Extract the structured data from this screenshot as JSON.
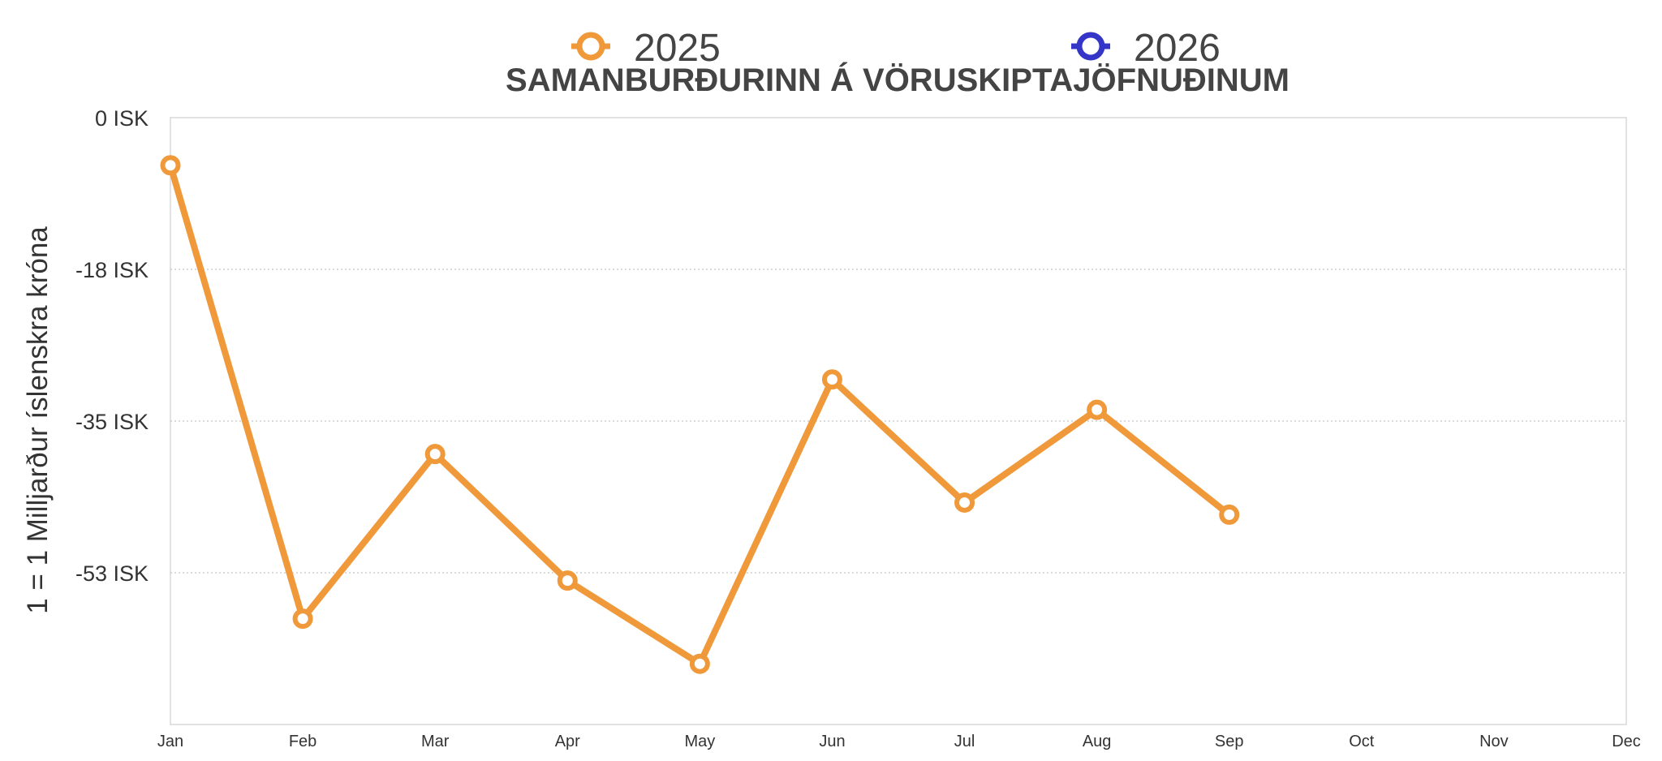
{
  "chart_data": {
    "type": "line",
    "title": "SAMANBURÐURINN Á VÖRUSKIPTAJÖFNUÐINUM",
    "xlabel": "",
    "ylabel": "1 = 1 Milljarður íslenskra króna",
    "categories": [
      "Jan",
      "Feb",
      "Mar",
      "Apr",
      "May",
      "Jun",
      "Jul",
      "Aug",
      "Sep",
      "Oct",
      "Nov",
      "Dec"
    ],
    "ylim": [
      -70,
      0
    ],
    "yticks": [
      {
        "value": 0,
        "label": "0 ISK"
      },
      {
        "value": -17.5,
        "label": "-18 ISK"
      },
      {
        "value": -35,
        "label": "-35 ISK"
      },
      {
        "value": -52.5,
        "label": "-53 ISK"
      }
    ],
    "grid": true,
    "legend_position": "top",
    "series": [
      {
        "name": "2025",
        "color": "#F0993A",
        "values": [
          -5.5,
          -57.8,
          -38.8,
          -53.4,
          -63.0,
          -30.2,
          -44.4,
          -33.7,
          -45.8,
          null,
          null,
          null
        ]
      },
      {
        "name": "2026",
        "color": "#3535C8",
        "values": [
          null,
          null,
          null,
          null,
          null,
          null,
          null,
          null,
          null,
          null,
          null,
          null
        ]
      }
    ]
  }
}
